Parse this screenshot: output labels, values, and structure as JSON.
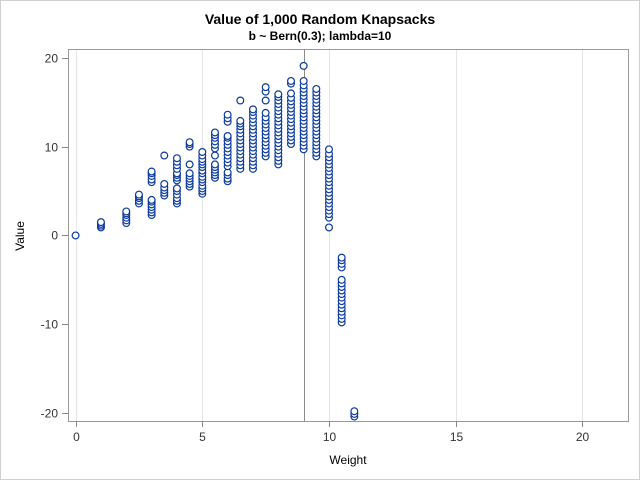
{
  "chart_data": {
    "type": "scatter",
    "title": "Value of 1,000 Random Knapsacks",
    "subtitle": "b ~ Bern(0.3); lambda=10",
    "xlabel": "Weight",
    "ylabel": "Value",
    "xlim": [
      -0.3,
      21.8
    ],
    "ylim": [
      -20.9,
      21.0
    ],
    "xticks": [
      0,
      5,
      10,
      15,
      20
    ],
    "yticks": [
      -20,
      -10,
      0,
      10,
      20
    ],
    "grid": "vertical",
    "reference_line_x": 9,
    "marker_color": "#0b3a9e",
    "groups": [
      {
        "weight": 0,
        "values": [
          0
        ]
      },
      {
        "weight": 1,
        "values": [
          0.9,
          1.1,
          1.3,
          1.5
        ]
      },
      {
        "weight": 2,
        "values": [
          1.4,
          1.7,
          2.0,
          2.3,
          2.5,
          2.7
        ]
      },
      {
        "weight": 2.5,
        "values": [
          3.6,
          3.9,
          4.2,
          4.4,
          4.6
        ]
      },
      {
        "weight": 3,
        "values": [
          2.3,
          2.6,
          2.9,
          3.2,
          3.5,
          3.8,
          4.0,
          6.0,
          6.3,
          6.7,
          7.0,
          7.2
        ]
      },
      {
        "weight": 3.5,
        "values": [
          4.5,
          4.8,
          5.1,
          5.4,
          5.8,
          9.0
        ]
      },
      {
        "weight": 4,
        "values": [
          3.6,
          3.9,
          4.2,
          4.6,
          5.0,
          5.3,
          6.2,
          6.5,
          6.8,
          7.0,
          7.5,
          7.9,
          8.3,
          8.7
        ]
      },
      {
        "weight": 4.5,
        "values": [
          5.5,
          5.8,
          6.1,
          6.4,
          6.7,
          7.0,
          8.0,
          10.0,
          10.3,
          10.5
        ]
      },
      {
        "weight": 5,
        "values": [
          4.7,
          5.0,
          5.3,
          5.6,
          6.0,
          6.3,
          6.6,
          7.0,
          7.3,
          7.7,
          8.0,
          8.3,
          8.6,
          9.0,
          9.4
        ]
      },
      {
        "weight": 5.5,
        "values": [
          6.5,
          6.8,
          7.1,
          7.4,
          7.7,
          8.0,
          9.0,
          9.8,
          10.2,
          10.6,
          11.0,
          11.3,
          11.6
        ]
      },
      {
        "weight": 6,
        "values": [
          6.1,
          6.4,
          6.8,
          7.1,
          7.8,
          8.2,
          8.6,
          9.0,
          9.4,
          9.8,
          10.2,
          10.6,
          11.0,
          11.2,
          12.8,
          13.2,
          13.6
        ]
      },
      {
        "weight": 6.5,
        "values": [
          7.5,
          7.9,
          8.3,
          8.7,
          9.1,
          9.5,
          9.9,
          10.3,
          10.7,
          11.1,
          11.5,
          11.9,
          12.3,
          12.6,
          12.9,
          15.2
        ]
      },
      {
        "weight": 7,
        "values": [
          7.5,
          7.9,
          8.3,
          8.7,
          9.1,
          9.5,
          9.9,
          10.3,
          10.7,
          11.1,
          11.5,
          11.9,
          12.3,
          12.7,
          13.1,
          13.5,
          13.9,
          14.2
        ]
      },
      {
        "weight": 7.5,
        "values": [
          8.9,
          9.3,
          9.7,
          10.1,
          10.5,
          10.9,
          11.3,
          11.7,
          12.1,
          12.5,
          12.9,
          13.3,
          13.8,
          15.2,
          16.2,
          16.7
        ]
      },
      {
        "weight": 8,
        "values": [
          8.0,
          8.4,
          8.8,
          9.2,
          9.6,
          10.0,
          10.4,
          10.8,
          11.2,
          11.6,
          12.0,
          12.4,
          12.8,
          13.2,
          13.6,
          14.0,
          14.4,
          14.8,
          15.2,
          15.6,
          15.9
        ]
      },
      {
        "weight": 8.5,
        "values": [
          10.3,
          10.7,
          11.1,
          11.5,
          11.9,
          12.3,
          12.7,
          13.1,
          13.5,
          13.9,
          14.3,
          14.7,
          15.1,
          15.5,
          16.0,
          17.1,
          17.4
        ]
      },
      {
        "weight": 9,
        "values": [
          9.7,
          10.1,
          10.5,
          10.9,
          11.3,
          11.7,
          12.1,
          12.5,
          12.9,
          13.3,
          13.7,
          14.1,
          14.5,
          14.9,
          15.3,
          15.7,
          16.1,
          16.5,
          16.9,
          17.4,
          19.1
        ]
      },
      {
        "weight": 9.5,
        "values": [
          8.9,
          9.3,
          9.7,
          10.1,
          10.5,
          10.9,
          11.3,
          11.7,
          12.1,
          12.5,
          12.9,
          13.3,
          13.7,
          14.1,
          14.5,
          14.9,
          15.3,
          15.7,
          16.1,
          16.5
        ]
      },
      {
        "weight": 10,
        "values": [
          0.9,
          2.0,
          2.4,
          2.8,
          3.2,
          3.6,
          4.0,
          4.4,
          4.8,
          5.2,
          5.6,
          6.0,
          6.4,
          6.8,
          7.2,
          7.6,
          8.0,
          8.4,
          8.8,
          9.2,
          9.7
        ]
      },
      {
        "weight": 10.5,
        "values": [
          -9.8,
          -9.4,
          -9.0,
          -8.6,
          -8.2,
          -7.8,
          -7.4,
          -7.0,
          -6.6,
          -6.2,
          -5.8,
          -5.4,
          -5.0,
          -3.6,
          -3.2,
          -2.8,
          -2.5
        ]
      },
      {
        "weight": 11,
        "values": [
          -20.4,
          -20.1,
          -19.8
        ]
      }
    ]
  }
}
